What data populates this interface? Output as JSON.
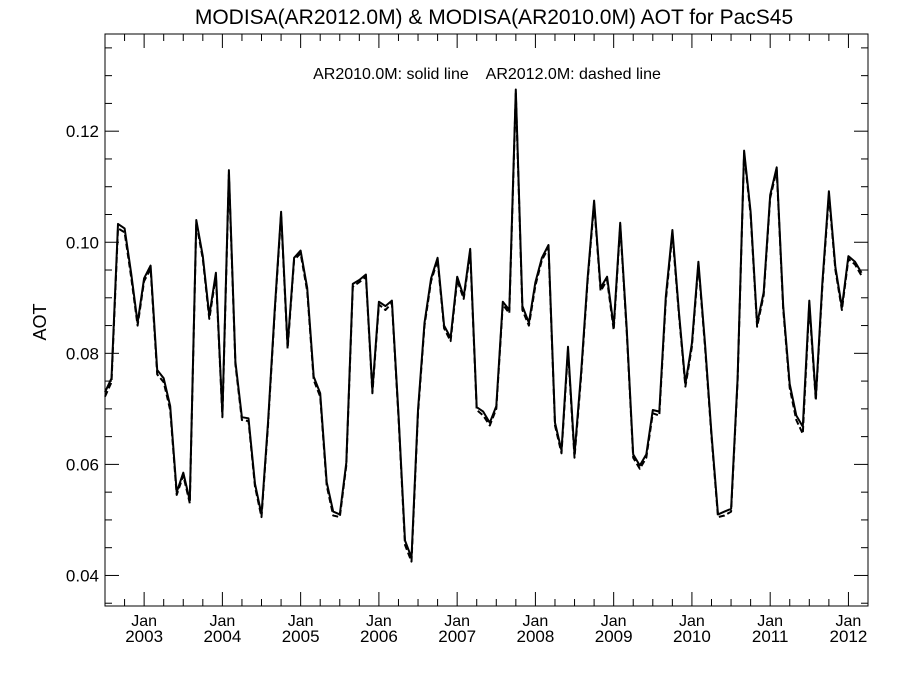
{
  "chart_data": {
    "type": "line",
    "title": "MODISA(AR2012.0M) & MODISA(AR2010.0M)  AOT for PacS45",
    "annotation": "AR2010.0M: solid line    AR2012.0M: dashed line",
    "ylabel": "AOT",
    "xlabel": "",
    "xlim": [
      "2002-07-01",
      "2012-04-01"
    ],
    "ylim": [
      0.0345,
      0.1375
    ],
    "grid": false,
    "y_ticks": [
      0.04,
      0.06,
      0.08,
      0.1,
      0.12
    ],
    "y_tick_labels": [
      "0.04",
      "0.06",
      "0.08",
      "0.10",
      "0.12"
    ],
    "x_ticks": [
      {
        "date": "2003-01-01",
        "month": "Jan",
        "year": "2003"
      },
      {
        "date": "2004-01-01",
        "month": "Jan",
        "year": "2004"
      },
      {
        "date": "2005-01-01",
        "month": "Jan",
        "year": "2005"
      },
      {
        "date": "2006-01-01",
        "month": "Jan",
        "year": "2006"
      },
      {
        "date": "2007-01-01",
        "month": "Jan",
        "year": "2007"
      },
      {
        "date": "2008-01-01",
        "month": "Jan",
        "year": "2008"
      },
      {
        "date": "2009-01-01",
        "month": "Jan",
        "year": "2009"
      },
      {
        "date": "2010-01-01",
        "month": "Jan",
        "year": "2010"
      },
      {
        "date": "2011-01-01",
        "month": "Jan",
        "year": "2011"
      },
      {
        "date": "2012-01-01",
        "month": "Jan",
        "year": "2012"
      }
    ],
    "x": [
      "2002-07",
      "2002-08",
      "2002-09",
      "2002-10",
      "2002-11",
      "2002-12",
      "2003-01",
      "2003-02",
      "2003-03",
      "2003-04",
      "2003-05",
      "2003-06",
      "2003-07",
      "2003-08",
      "2003-09",
      "2003-10",
      "2003-11",
      "2003-12",
      "2004-01",
      "2004-02",
      "2004-03",
      "2004-04",
      "2004-05",
      "2004-06",
      "2004-07",
      "2004-08",
      "2004-09",
      "2004-10",
      "2004-11",
      "2004-12",
      "2005-01",
      "2005-02",
      "2005-03",
      "2005-04",
      "2005-05",
      "2005-06",
      "2005-07",
      "2005-08",
      "2005-09",
      "2005-10",
      "2005-11",
      "2005-12",
      "2006-01",
      "2006-02",
      "2006-03",
      "2006-04",
      "2006-05",
      "2006-06",
      "2006-07",
      "2006-08",
      "2006-09",
      "2006-10",
      "2006-11",
      "2006-12",
      "2007-01",
      "2007-02",
      "2007-03",
      "2007-04",
      "2007-05",
      "2007-06",
      "2007-07",
      "2007-08",
      "2007-09",
      "2007-10",
      "2007-11",
      "2007-12",
      "2008-01",
      "2008-02",
      "2008-03",
      "2008-04",
      "2008-05",
      "2008-06",
      "2008-07",
      "2008-08",
      "2008-09",
      "2008-10",
      "2008-11",
      "2008-12",
      "2009-01",
      "2009-02",
      "2009-03",
      "2009-04",
      "2009-05",
      "2009-06",
      "2009-07",
      "2009-08",
      "2009-09",
      "2009-10",
      "2009-11",
      "2009-12",
      "2010-01",
      "2010-02",
      "2010-03",
      "2010-04",
      "2010-05",
      "2010-06",
      "2010-07",
      "2010-08",
      "2010-09",
      "2010-10",
      "2010-11",
      "2010-12",
      "2011-01",
      "2011-02",
      "2011-03",
      "2011-04",
      "2011-05",
      "2011-06",
      "2011-07",
      "2011-08",
      "2011-09",
      "2011-10",
      "2011-11",
      "2011-12",
      "2012-01",
      "2012-02",
      "2012-03"
    ],
    "series": [
      {
        "name": "AR2010.0M",
        "style": "solid",
        "color": "#000000",
        "values": [
          0.073,
          0.0755,
          0.1033,
          0.1025,
          0.0945,
          0.0855,
          0.0935,
          0.0958,
          0.077,
          0.0755,
          0.0705,
          0.055,
          0.0585,
          0.0535,
          0.104,
          0.0975,
          0.0868,
          0.0945,
          0.069,
          0.113,
          0.0785,
          0.0685,
          0.0683,
          0.0565,
          0.051,
          0.0675,
          0.0875,
          0.1055,
          0.0813,
          0.0972,
          0.0985,
          0.0918,
          0.0758,
          0.0728,
          0.0568,
          0.0515,
          0.051,
          0.0603,
          0.0925,
          0.0932,
          0.0942,
          0.0733,
          0.0893,
          0.0885,
          0.0895,
          0.069,
          0.0463,
          0.0432,
          0.0698,
          0.0855,
          0.0935,
          0.0972,
          0.085,
          0.0828,
          0.0938,
          0.0902,
          0.0988,
          0.0703,
          0.0695,
          0.0675,
          0.0705,
          0.0893,
          0.0878,
          0.1275,
          0.0885,
          0.0855,
          0.0928,
          0.0972,
          0.0995,
          0.0675,
          0.0625,
          0.0812,
          0.0618,
          0.0765,
          0.0935,
          0.1075,
          0.0918,
          0.0938,
          0.0848,
          0.1035,
          0.0845,
          0.0618,
          0.0598,
          0.0618,
          0.0698,
          0.0695,
          0.0902,
          0.1022,
          0.0875,
          0.0745,
          0.0818,
          0.0965,
          0.0818,
          0.0655,
          0.051,
          0.0515,
          0.052,
          0.0755,
          0.1165,
          0.1055,
          0.0853,
          0.091,
          0.1085,
          0.1135,
          0.0885,
          0.0745,
          0.0688,
          0.0668,
          0.0895,
          0.072,
          0.0928,
          0.1092,
          0.0955,
          0.0883,
          0.0975,
          0.0965,
          0.0945
        ]
      },
      {
        "name": "AR2012.0M",
        "style": "dashed",
        "color": "#000000",
        "values": [
          0.0722,
          0.0748,
          0.1025,
          0.1018,
          0.0938,
          0.085,
          0.093,
          0.0952,
          0.0762,
          0.0748,
          0.0698,
          0.0545,
          0.058,
          0.053,
          0.1035,
          0.097,
          0.0862,
          0.094,
          0.0685,
          0.1122,
          0.078,
          0.068,
          0.0678,
          0.056,
          0.0505,
          0.067,
          0.087,
          0.105,
          0.0808,
          0.0968,
          0.098,
          0.0912,
          0.0752,
          0.0722,
          0.0562,
          0.0508,
          0.0505,
          0.0598,
          0.092,
          0.0928,
          0.0938,
          0.0728,
          0.0888,
          0.0878,
          0.089,
          0.0685,
          0.0455,
          0.0425,
          0.0692,
          0.085,
          0.093,
          0.0968,
          0.0845,
          0.0822,
          0.0932,
          0.0898,
          0.0982,
          0.0698,
          0.0688,
          0.067,
          0.07,
          0.0888,
          0.0872,
          0.1268,
          0.0878,
          0.085,
          0.0922,
          0.0968,
          0.099,
          0.067,
          0.062,
          0.0805,
          0.0612,
          0.0758,
          0.093,
          0.107,
          0.0912,
          0.0932,
          0.0842,
          0.103,
          0.084,
          0.0612,
          0.0592,
          0.0612,
          0.0692,
          0.0688,
          0.0895,
          0.1015,
          0.087,
          0.074,
          0.0812,
          0.096,
          0.0812,
          0.065,
          0.0505,
          0.0508,
          0.0515,
          0.075,
          0.116,
          0.105,
          0.0848,
          0.0905,
          0.108,
          0.113,
          0.088,
          0.0738,
          0.068,
          0.0655,
          0.0888,
          0.0715,
          0.0922,
          0.1085,
          0.095,
          0.0878,
          0.097,
          0.096,
          0.094
        ]
      }
    ]
  }
}
